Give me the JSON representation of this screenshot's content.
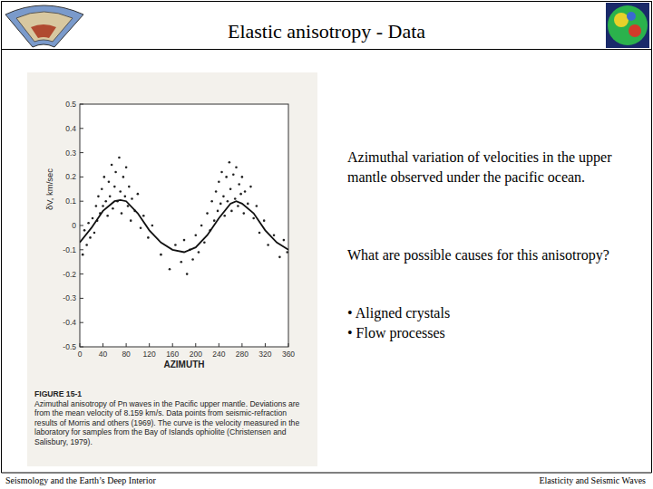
{
  "header": {
    "title": "Elastic anisotropy - Data"
  },
  "text": {
    "description": "Azimuthal variation of velocities in the upper mantle observed under the pacific ocean.",
    "question": "What are possible causes for this anisotropy?",
    "bullets": [
      "• Aligned crystals",
      "• Flow processes"
    ]
  },
  "figure": {
    "label": "FIGURE 15-1",
    "caption": "Azimuthal anisotropy of Pn waves in the Pacific upper mantle. Deviations are from the mean velocity of 8.159 km/s. Data points from seismic-refraction results of Morris and others (1969). The curve is the velocity measured in the laboratory for samples from the Bay of Islands ophiolite (Christensen and Salisbury, 1979)."
  },
  "footer": {
    "left": "Seismology and the Earth’s Deep Interior",
    "right": "Elasticity and Seismic Waves"
  },
  "chart_data": {
    "type": "scatter",
    "x_label": "AZIMUTH",
    "y_label": "δV, km/sec",
    "xlim": [
      0,
      360
    ],
    "xticks": [
      0,
      40,
      80,
      120,
      160,
      200,
      240,
      280,
      320,
      360
    ],
    "ylim": [
      -0.5,
      0.5
    ],
    "yticks": [
      0.5,
      0.4,
      0.3,
      0.2,
      0.1,
      0,
      -0.1,
      -0.2,
      -0.3,
      -0.4,
      -0.5
    ],
    "series": [
      {
        "type": "scatter",
        "marker": "dot",
        "color": "#222222",
        "x": [
          5,
          8,
          12,
          15,
          18,
          22,
          25,
          28,
          30,
          32,
          35,
          38,
          40,
          42,
          45,
          48,
          50,
          52,
          55,
          57,
          60,
          62,
          65,
          68,
          70,
          72,
          75,
          78,
          80,
          83,
          85,
          88,
          90,
          95,
          100,
          105,
          110,
          118,
          125,
          140,
          155,
          165,
          175,
          180,
          185,
          190,
          195,
          200,
          205,
          210,
          215,
          220,
          225,
          228,
          232,
          235,
          238,
          240,
          243,
          245,
          248,
          250,
          253,
          255,
          258,
          260,
          262,
          265,
          268,
          270,
          273,
          275,
          278,
          280,
          283,
          285,
          290,
          295,
          300,
          305,
          310,
          318,
          325,
          335,
          345,
          352,
          358
        ],
        "values": [
          -0.12,
          -0.02,
          -0.08,
          0.01,
          -0.05,
          0.03,
          -0.03,
          0.08,
          0.02,
          0.12,
          0.05,
          0.15,
          0.08,
          0.2,
          0.1,
          0.04,
          0.18,
          0.12,
          0.25,
          0.07,
          0.16,
          0.22,
          0.1,
          0.28,
          0.14,
          0.05,
          0.2,
          0.12,
          0.24,
          0.08,
          0.16,
          0.02,
          0.11,
          0.06,
          0.13,
          -0.01,
          0.04,
          -0.05,
          0,
          -0.12,
          -0.18,
          -0.08,
          -0.15,
          -0.06,
          -0.2,
          -0.1,
          -0.14,
          -0.04,
          -0.11,
          0,
          -0.07,
          0.05,
          -0.02,
          0.1,
          0.02,
          0.14,
          0.06,
          0.18,
          0.09,
          0.22,
          0.12,
          0.04,
          0.2,
          0.1,
          0.26,
          0.15,
          0.06,
          0.21,
          0.11,
          0.24,
          0.08,
          0.17,
          0.13,
          0.2,
          0.05,
          0.14,
          0.09,
          0.16,
          0.03,
          0.08,
          -0.03,
          0.02,
          -0.08,
          -0.04,
          -0.13,
          -0.06,
          -0.11
        ]
      },
      {
        "type": "line",
        "line_style": "solid",
        "color": "#111111",
        "x": [
          0,
          20,
          40,
          60,
          70,
          80,
          100,
          120,
          140,
          160,
          180,
          200,
          220,
          240,
          260,
          270,
          280,
          300,
          320,
          340,
          360
        ],
        "values": [
          -0.07,
          -0.01,
          0.06,
          0.1,
          0.105,
          0.1,
          0.05,
          -0.02,
          -0.07,
          -0.1,
          -0.11,
          -0.09,
          -0.04,
          0.03,
          0.09,
          0.1,
          0.09,
          0.05,
          -0.02,
          -0.07,
          -0.1
        ]
      }
    ]
  }
}
